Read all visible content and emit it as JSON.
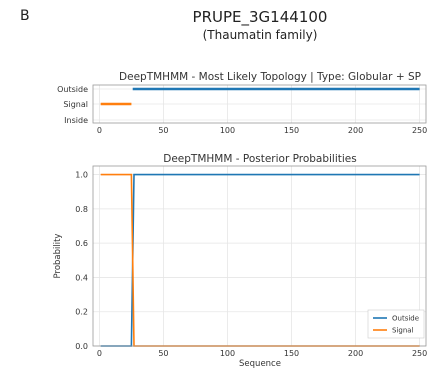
{
  "header": {
    "panel_letter": "B",
    "gene": "PRUPE_3G144100",
    "family": "(Thaumatin family)"
  },
  "chart_data": [
    {
      "type": "line",
      "title": "DeepTMHMM - Most Likely Topology | Type: Globular + SP",
      "categories": [
        "Outside",
        "Signal",
        "Inside"
      ],
      "x_ticks": [
        "0",
        "50",
        "100",
        "150",
        "200",
        "250"
      ],
      "xlim": [
        -5,
        255
      ],
      "grid": true,
      "series": [
        {
          "name": "Outside",
          "color": "#1f77b4",
          "segments": [
            [
              26,
              250
            ]
          ]
        },
        {
          "name": "Signal",
          "color": "#ff7f0e",
          "segments": [
            [
              1,
              25
            ]
          ]
        }
      ]
    },
    {
      "type": "line",
      "title": "DeepTMHMM - Posterior Probabilities",
      "xlabel": "Sequence",
      "ylabel": "Probability",
      "x_ticks": [
        "0",
        "50",
        "100",
        "150",
        "200",
        "250"
      ],
      "y_ticks": [
        "0.0",
        "0.2",
        "0.4",
        "0.6",
        "0.8",
        "1.0"
      ],
      "xlim": [
        -5,
        255
      ],
      "ylim": [
        0,
        1.05
      ],
      "grid": true,
      "legend_position": "bottom-right",
      "series": [
        {
          "name": "Outside",
          "color": "#1f77b4",
          "x": [
            1,
            25,
            26,
            27,
            250
          ],
          "y": [
            0.0,
            0.0,
            0.5,
            1.0,
            1.0
          ]
        },
        {
          "name": "Signal",
          "color": "#ff7f0e",
          "x": [
            1,
            25,
            26,
            27,
            250
          ],
          "y": [
            1.0,
            1.0,
            0.5,
            0.0,
            0.0
          ]
        }
      ]
    }
  ]
}
